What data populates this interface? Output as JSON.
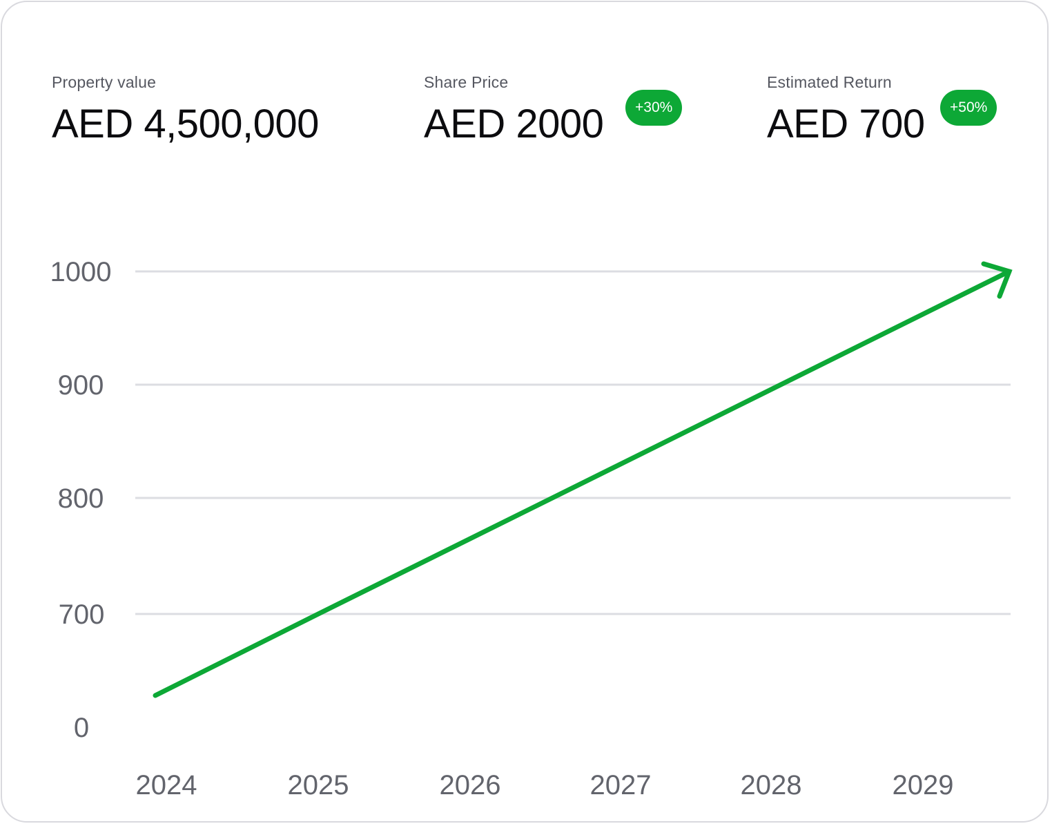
{
  "metrics": [
    {
      "label": "Property value",
      "value": "AED 4,500,000"
    },
    {
      "label": "Share Price",
      "value": "AED 2000",
      "badge": "+30%"
    },
    {
      "label": "Estimated Return",
      "value": "AED 700",
      "badge": "+50%"
    }
  ],
  "colors": {
    "accent": "#0da836",
    "grid": "#dcdde2",
    "text": "#0c0c0f",
    "muted": "#62646c"
  },
  "icons": {
    "arrow_head": "arrow-head-icon"
  },
  "chart_data": {
    "type": "line",
    "x": [
      "2024",
      "2025",
      "2026",
      "2027",
      "2028",
      "2029"
    ],
    "y_ticks": [
      "0",
      "700",
      "800",
      "900",
      "1000"
    ],
    "series": [
      {
        "points": [
          [
            2024,
            0
          ],
          [
            2025,
            700
          ],
          [
            2029.55,
            1000
          ]
        ]
      }
    ],
    "grid": true,
    "end_marker": "arrow"
  }
}
